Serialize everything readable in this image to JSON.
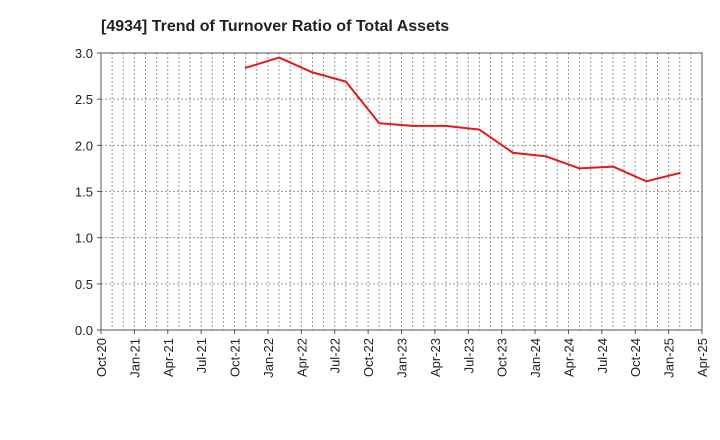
{
  "chart_data": {
    "type": "line",
    "title": "[4934]  Trend of Turnover Ratio of Total Assets",
    "xlabel": "",
    "ylabel": "",
    "x_ticks": [
      "Oct-20",
      "Jan-21",
      "Apr-21",
      "Jul-21",
      "Oct-21",
      "Jan-22",
      "Apr-22",
      "Jul-22",
      "Oct-22",
      "Jan-23",
      "Apr-23",
      "Jul-23",
      "Oct-23",
      "Jan-24",
      "Apr-24",
      "Jul-24",
      "Oct-24",
      "Jan-25",
      "Apr-25"
    ],
    "y_ticks": [
      "0.0",
      "0.5",
      "1.0",
      "1.5",
      "2.0",
      "2.5",
      "3.0"
    ],
    "ylim": [
      0,
      3.0
    ],
    "xlim": [
      "Oct-20",
      "Apr-25"
    ],
    "grid": true,
    "series": [
      {
        "color": "#e31a1c",
        "points": [
          {
            "x": "Nov-21",
            "y": 2.84
          },
          {
            "x": "Feb-22",
            "y": 2.95
          },
          {
            "x": "May-22",
            "y": 2.79
          },
          {
            "x": "Aug-22",
            "y": 2.69
          },
          {
            "x": "Nov-22",
            "y": 2.24
          },
          {
            "x": "Feb-23",
            "y": 2.21
          },
          {
            "x": "May-23",
            "y": 2.21
          },
          {
            "x": "Aug-23",
            "y": 2.17
          },
          {
            "x": "Nov-23",
            "y": 1.92
          },
          {
            "x": "Feb-24",
            "y": 1.88
          },
          {
            "x": "May-24",
            "y": 1.75
          },
          {
            "x": "Aug-24",
            "y": 1.77
          },
          {
            "x": "Nov-24",
            "y": 1.61
          },
          {
            "x": "Feb-25",
            "y": 1.7
          }
        ]
      }
    ]
  }
}
